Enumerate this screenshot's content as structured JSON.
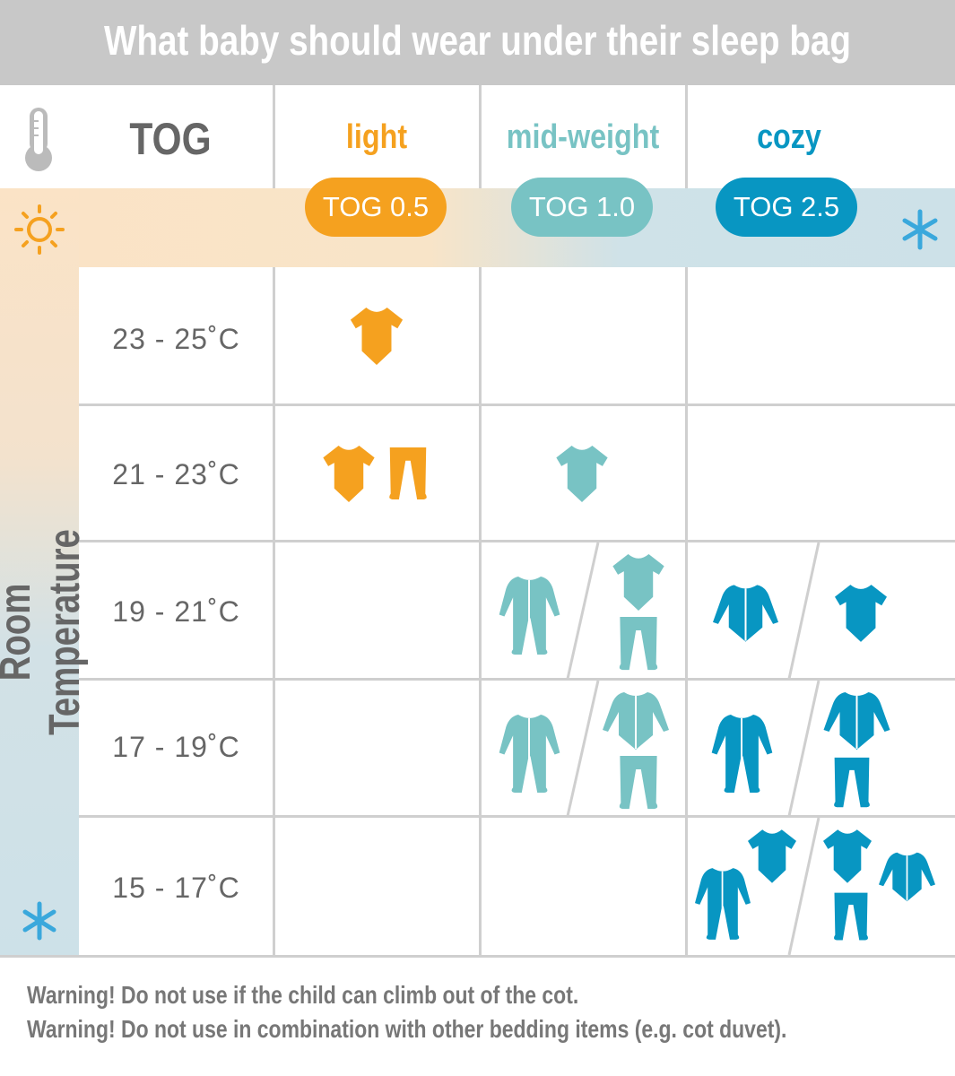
{
  "title": "What baby should wear under their sleep bag",
  "header": {
    "tog_label": "TOG",
    "thermometer_icon": "thermometer-icon",
    "warm_icon": "sun-icon",
    "cold_icon": "snowflake-icon",
    "side_label": "Room Temperature",
    "columns": [
      {
        "name": "light",
        "tog": "TOG 0.5",
        "color": "#f5a11f"
      },
      {
        "name": "mid-weight",
        "tog": "TOG 1.0",
        "color": "#78c3c4"
      },
      {
        "name": "cozy",
        "tog": "TOG 2.5",
        "color": "#0896c2"
      }
    ]
  },
  "rows": [
    {
      "temp": "23 - 25˚C",
      "light": [
        [
          "short-sleeve-bodysuit"
        ]
      ],
      "mid": [],
      "cozy": []
    },
    {
      "temp": "21 - 23˚C",
      "light": [
        [
          "short-sleeve-bodysuit",
          "footed-leggings"
        ]
      ],
      "mid": [
        [
          "short-sleeve-bodysuit"
        ]
      ],
      "cozy": []
    },
    {
      "temp": "19 - 21˚C",
      "light": [],
      "mid": [
        [
          "sleepsuit"
        ],
        [
          "short-sleeve-bodysuit",
          "footed-leggings"
        ]
      ],
      "cozy": [
        [
          "long-sleeve-bodysuit"
        ],
        [
          "short-sleeve-bodysuit"
        ]
      ]
    },
    {
      "temp": "17 - 19˚C",
      "light": [],
      "mid": [
        [
          "sleepsuit"
        ],
        [
          "long-sleeve-bodysuit",
          "footed-leggings"
        ]
      ],
      "cozy": [
        [
          "sleepsuit"
        ],
        [
          "long-sleeve-bodysuit",
          "footed-leggings"
        ]
      ]
    },
    {
      "temp": "15 - 17˚C",
      "light": [],
      "mid": [],
      "cozy": [
        [
          "sleepsuit",
          "short-sleeve-bodysuit"
        ],
        [
          "short-sleeve-bodysuit",
          "footed-leggings",
          "long-sleeve-bodysuit"
        ]
      ]
    }
  ],
  "warnings": [
    "Warning! Do not use if the child can climb out of the cot.",
    "Warning! Do not use in combination with other bedding items (e.g. cot duvet)."
  ]
}
